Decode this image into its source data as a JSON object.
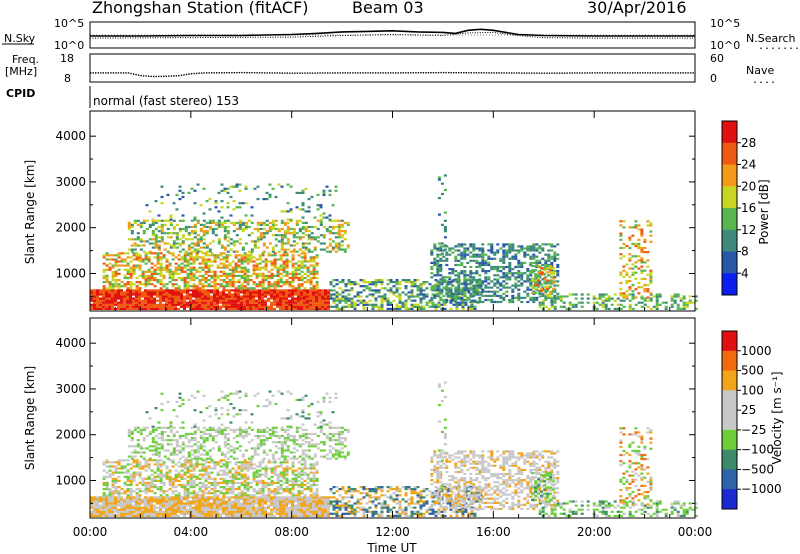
{
  "header": {
    "title": "Zhongshan Station (fitACF)",
    "beam": "Beam 03",
    "date": "30/Apr/2016"
  },
  "strip_panels": {
    "nsky_label": "N.Sky",
    "nsearch_label": "N.Search",
    "nsearch_dots": "........",
    "freq_label_1": "Freq.",
    "freq_label_2": "[MHz]",
    "nave_label": "Nave",
    "nave_dots": "....",
    "cpid_label": "CPID",
    "cpid_text": "normal (fast stereo) 153",
    "noise_ticks_left": [
      "10^5",
      "10^0"
    ],
    "noise_ticks_right": [
      "10^5",
      "10^0"
    ],
    "freq_ticks": [
      "18",
      "8"
    ],
    "nave_ticks": [
      "60",
      "0"
    ]
  },
  "chart_data": [
    {
      "type": "line",
      "panel": "noise",
      "series": [
        {
          "name": "N.Sky",
          "x": [
            0,
            2,
            4,
            6,
            8,
            9,
            10,
            11,
            12,
            13,
            14,
            14.5,
            15,
            15.5,
            16,
            16.5,
            17,
            18,
            20,
            22,
            24
          ],
          "y": [
            2.3,
            2.3,
            2.4,
            2.4,
            2.6,
            2.8,
            3.1,
            3.2,
            3.3,
            3.1,
            3.0,
            2.8,
            3.4,
            3.6,
            3.4,
            3.0,
            2.6,
            2.4,
            2.3,
            2.3,
            2.3
          ]
        },
        {
          "name": "N.Search",
          "x": [
            0,
            4,
            8,
            10,
            12,
            14,
            15,
            16,
            17,
            18,
            20,
            24
          ],
          "y": [
            1.9,
            2.0,
            2.1,
            2.4,
            2.6,
            2.4,
            2.9,
            3.0,
            2.4,
            2.0,
            1.9,
            1.9
          ]
        }
      ],
      "xlim": [
        0,
        24
      ],
      "yscale": "log"
    },
    {
      "type": "scatter",
      "panel": "frequency",
      "series": [
        {
          "name": "Freq.",
          "x": [
            0,
            1.5,
            2,
            2.5,
            3,
            3.5,
            4,
            4.5,
            6,
            8,
            10,
            12,
            14,
            16,
            18,
            20,
            22,
            24
          ],
          "y": [
            11.5,
            11.5,
            10.5,
            10.2,
            10.3,
            10.5,
            11.2,
            11.5,
            11.6,
            11.4,
            11.5,
            11.5,
            11.6,
            11.5,
            11.4,
            11.5,
            11.5,
            11.5
          ]
        },
        {
          "name": "Nave",
          "x": [
            0,
            4,
            8,
            12,
            16,
            20,
            24
          ],
          "y": [
            20,
            20,
            20,
            20,
            20,
            20,
            20
          ]
        }
      ],
      "ylim": [
        8,
        18
      ],
      "y2lim": [
        0,
        60
      ]
    },
    {
      "type": "heatmap",
      "panel": "power",
      "xlabel": "",
      "ylabel": "Slant Range [km]",
      "xlim": [
        0,
        24
      ],
      "ylim": [
        180,
        4550
      ],
      "yticks": [
        "1000",
        "2000",
        "3000",
        "4000"
      ],
      "colorbar": {
        "label": "Power [dB]",
        "ticks": [
          "4",
          "8",
          "12",
          "16",
          "20",
          "24",
          "28"
        ],
        "colors": [
          "#0b1df0",
          "#2a58a8",
          "#3e8a7a",
          "#57b74f",
          "#c8d620",
          "#f39a1a",
          "#f05a10",
          "#e01010"
        ],
        "range": [
          0,
          32
        ]
      }
    },
    {
      "type": "heatmap",
      "panel": "velocity",
      "xlabel": "Time UT",
      "ylabel": "Slant Range [km]",
      "xlim": [
        0,
        24
      ],
      "ylim": [
        180,
        4550
      ],
      "xticks": [
        "00:00",
        "04:00",
        "08:00",
        "12:00",
        "16:00",
        "20:00",
        "00:00"
      ],
      "yticks": [
        "1000",
        "2000",
        "3000",
        "4000"
      ],
      "colorbar": {
        "label": "Velocity [m s⁻¹]",
        "ticks": [
          "1000",
          "500",
          "100",
          "25",
          "−25",
          "−100",
          "−500",
          "−1000"
        ],
        "colors": [
          "#1b2ad0",
          "#2e63a8",
          "#3c8a6a",
          "#6ccf3a",
          "#c8c8c8",
          "#c8c8c8",
          "#f2a51a",
          "#f06a10",
          "#e01010"
        ]
      }
    }
  ]
}
